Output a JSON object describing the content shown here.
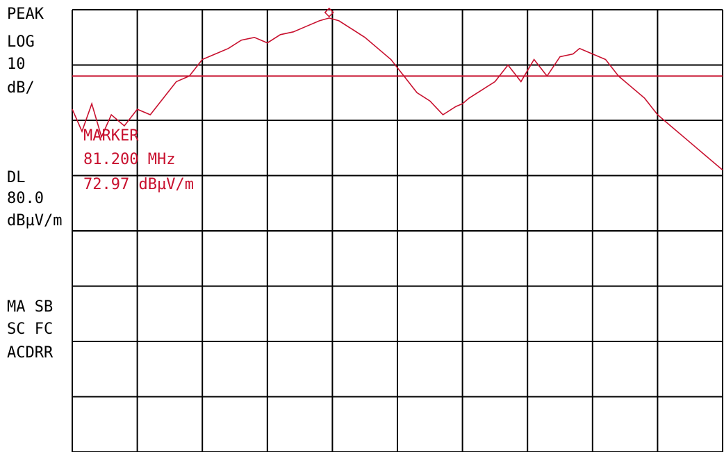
{
  "status": {
    "detector": "PEAK",
    "scale_type": "LOG",
    "scale_value": "10",
    "scale_unit": "dB/",
    "display_line_label": "DL",
    "display_line_value": "80.0",
    "display_line_unit": "dBµV/m",
    "annotation_1": "MA SB",
    "annotation_2": "SC FC",
    "annotation_3": "ACDRR"
  },
  "marker": {
    "title": "MARKER",
    "frequency": "81.200 MHz",
    "amplitude": "72.97 dBµV/m"
  },
  "colors": {
    "trace": "#c8102e",
    "grid": "#000000",
    "text": "#000000",
    "marker_text": "#c8102e"
  },
  "chart_data": {
    "type": "line",
    "y_scale": "log 10 dB/div",
    "x_divisions": 10,
    "y_divisions": 8,
    "grid": true,
    "display_line_dbuv_m": 80.0,
    "reference_level_dbuv_m": 92.0,
    "ylim": [
      12,
      92
    ],
    "xlim": [
      0,
      10
    ],
    "series": [
      {
        "x": [
          0.0,
          0.15,
          0.3,
          0.45,
          0.6,
          0.8,
          1.0,
          1.2,
          1.4,
          1.6,
          1.8,
          2.0,
          2.2,
          2.4,
          2.6,
          2.8,
          3.0,
          3.2,
          3.4,
          3.6,
          3.8,
          3.95,
          4.1,
          4.3,
          4.5,
          4.7,
          4.9,
          5.1,
          5.3,
          5.5,
          5.7,
          5.9,
          6.0,
          6.1,
          6.3,
          6.5,
          6.7,
          6.9,
          7.1,
          7.3,
          7.5,
          7.7,
          7.8,
          8.0,
          8.2,
          8.4,
          8.6,
          8.8,
          9.0,
          9.2,
          9.4,
          9.6,
          9.8,
          10.0
        ],
        "y": [
          74.0,
          70.0,
          75.0,
          69.0,
          73.0,
          71.0,
          74.0,
          73.0,
          76.0,
          79.0,
          80.0,
          83.0,
          84.0,
          85.0,
          86.5,
          87.0,
          86.0,
          87.5,
          88.0,
          89.0,
          90.0,
          90.5,
          90.0,
          88.5,
          87.0,
          85.0,
          83.0,
          80.0,
          77.0,
          75.5,
          73.0,
          74.5,
          75.0,
          76.0,
          77.5,
          79.0,
          82.0,
          79.0,
          83.0,
          80.0,
          83.5,
          84.0,
          85.0,
          84.0,
          83.0,
          80.0,
          78.0,
          76.0,
          73.0,
          71.0,
          69.0,
          67.0,
          65.0,
          63.0
        ]
      }
    ]
  }
}
